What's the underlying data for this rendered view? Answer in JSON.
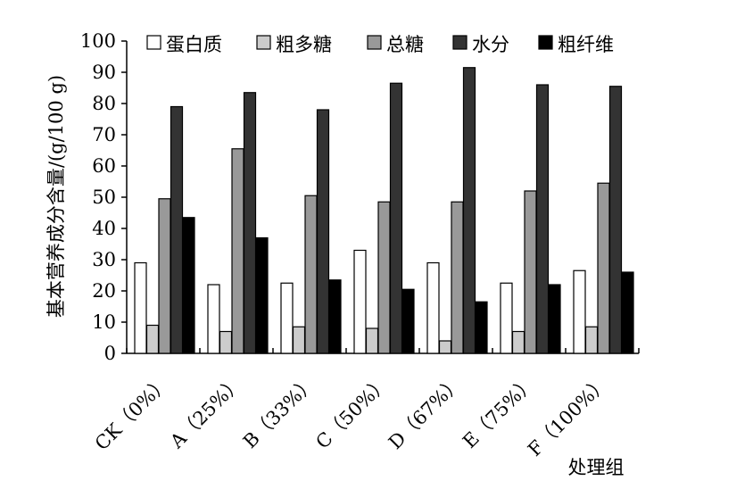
{
  "chart_data": {
    "type": "bar",
    "title": "",
    "xlabel": "处理组",
    "ylabel": "基本营养成分含量/(g/100 g)",
    "ylim": [
      0,
      100
    ],
    "yticks": [
      0,
      10,
      20,
      30,
      40,
      50,
      60,
      70,
      80,
      90,
      100
    ],
    "grid": false,
    "legend_position": "top",
    "categories": [
      "CK（0%）",
      "A（25%）",
      "B（33%）",
      "C（50%）",
      "D（67%）",
      "E（75%）",
      "F（100%）"
    ],
    "series": [
      {
        "name": "蛋白质",
        "color": "#ffffff",
        "values": [
          29,
          22,
          22.5,
          33,
          29,
          22.5,
          26.5
        ]
      },
      {
        "name": "粗多糖",
        "color": "#cccccc",
        "values": [
          9,
          7,
          8.5,
          8,
          4,
          7,
          8.5
        ]
      },
      {
        "name": "总糖",
        "color": "#999999",
        "values": [
          49.5,
          65.5,
          50.5,
          48.5,
          48.5,
          52,
          54.5
        ]
      },
      {
        "name": "水分",
        "color": "#333333",
        "values": [
          79,
          83.5,
          78,
          86.5,
          91.5,
          86,
          85.5
        ]
      },
      {
        "name": "粗纤维",
        "color": "#000000",
        "values": [
          43.5,
          37,
          23.5,
          20.5,
          16.5,
          22,
          26
        ]
      }
    ]
  }
}
